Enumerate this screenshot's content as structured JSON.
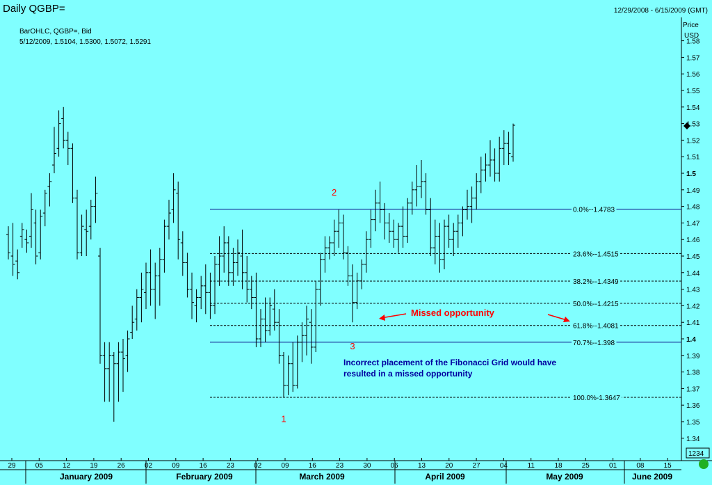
{
  "header": {
    "title": "Daily QGBP=",
    "date_range": "12/29/2008 - 6/15/2009 (GMT)",
    "series_info": "BarOHLC, QGBP=, Bid",
    "last_bar": "5/12/2009, 1.5104, 1.5300, 1.5072, 1.5291"
  },
  "axis": {
    "price_label": "Price",
    "currency_label": "USD",
    "corner_box": "1234"
  },
  "chart_data": {
    "type": "bar",
    "subtype": "ohlc",
    "ylim": [
      1.33,
      1.595
    ],
    "grid": false,
    "x_ticks": [
      "29",
      "05",
      "12",
      "19",
      "26",
      "02",
      "09",
      "16",
      "23",
      "02",
      "09",
      "16",
      "23",
      "30",
      "06",
      "13",
      "20",
      "27",
      "04",
      "11",
      "18",
      "25",
      "01",
      "08",
      "15"
    ],
    "month_labels": [
      "January 2009",
      "February 2009",
      "March 2009",
      "April 2009",
      "May 2009",
      "June 2009"
    ],
    "y_ticks": [
      1.34,
      1.35,
      1.36,
      1.37,
      1.38,
      1.39,
      1.4,
      1.41,
      1.42,
      1.43,
      1.44,
      1.45,
      1.46,
      1.47,
      1.48,
      1.49,
      1.5,
      1.51,
      1.52,
      1.53,
      1.54,
      1.55,
      1.56,
      1.57,
      1.58
    ],
    "last_price": 1.53,
    "ohlc": [
      [
        1.463,
        1.468,
        1.448,
        1.452
      ],
      [
        1.45,
        1.47,
        1.438,
        1.445
      ],
      [
        1.447,
        1.454,
        1.436,
        1.44
      ],
      [
        1.462,
        1.47,
        1.455,
        1.466
      ],
      [
        1.46,
        1.466,
        1.452,
        1.458
      ],
      [
        1.462,
        1.488,
        1.455,
        1.478
      ],
      [
        1.47,
        1.478,
        1.445,
        1.45
      ],
      [
        1.452,
        1.478,
        1.448,
        1.474
      ],
      [
        1.476,
        1.49,
        1.468,
        1.488
      ],
      [
        1.492,
        1.5,
        1.48,
        1.495
      ],
      [
        1.505,
        1.528,
        1.5,
        1.512
      ],
      [
        1.515,
        1.538,
        1.51,
        1.53
      ],
      [
        1.533,
        1.54,
        1.515,
        1.52
      ],
      [
        1.52,
        1.525,
        1.505,
        1.515
      ],
      [
        1.515,
        1.518,
        1.482,
        1.485
      ],
      [
        1.485,
        1.49,
        1.448,
        1.452
      ],
      [
        1.452,
        1.475,
        1.45,
        1.468
      ],
      [
        1.466,
        1.478,
        1.45,
        1.465
      ],
      [
        1.468,
        1.484,
        1.46,
        1.48
      ],
      [
        1.48,
        1.498,
        1.47,
        1.488
      ],
      [
        1.45,
        1.455,
        1.385,
        1.39
      ],
      [
        1.39,
        1.398,
        1.362,
        1.382
      ],
      [
        1.382,
        1.398,
        1.362,
        1.39
      ],
      [
        1.39,
        1.392,
        1.35,
        1.385
      ],
      [
        1.385,
        1.398,
        1.362,
        1.392
      ],
      [
        1.392,
        1.4,
        1.368,
        1.388
      ],
      [
        1.39,
        1.405,
        1.38,
        1.4
      ],
      [
        1.404,
        1.42,
        1.4,
        1.41
      ],
      [
        1.412,
        1.43,
        1.405,
        1.425
      ],
      [
        1.425,
        1.44,
        1.41,
        1.43
      ],
      [
        1.428,
        1.446,
        1.418,
        1.44
      ],
      [
        1.44,
        1.454,
        1.42,
        1.43
      ],
      [
        1.43,
        1.446,
        1.412,
        1.438
      ],
      [
        1.438,
        1.455,
        1.42,
        1.448
      ],
      [
        1.448,
        1.472,
        1.44,
        1.468
      ],
      [
        1.468,
        1.484,
        1.46,
        1.476
      ],
      [
        1.478,
        1.5,
        1.47,
        1.49
      ],
      [
        1.488,
        1.495,
        1.448,
        1.46
      ],
      [
        1.458,
        1.465,
        1.438,
        1.446
      ],
      [
        1.446,
        1.452,
        1.425,
        1.43
      ],
      [
        1.43,
        1.44,
        1.412,
        1.422
      ],
      [
        1.42,
        1.43,
        1.41,
        1.425
      ],
      [
        1.425,
        1.438,
        1.418,
        1.432
      ],
      [
        1.432,
        1.445,
        1.415,
        1.428
      ],
      [
        1.428,
        1.44,
        1.412,
        1.42
      ],
      [
        1.42,
        1.45,
        1.415,
        1.445
      ],
      [
        1.445,
        1.462,
        1.432,
        1.45
      ],
      [
        1.45,
        1.468,
        1.44,
        1.458
      ],
      [
        1.458,
        1.462,
        1.432,
        1.44
      ],
      [
        1.44,
        1.455,
        1.432,
        1.446
      ],
      [
        1.446,
        1.46,
        1.438,
        1.452
      ],
      [
        1.45,
        1.466,
        1.43,
        1.44
      ],
      [
        1.44,
        1.45,
        1.422,
        1.43
      ],
      [
        1.43,
        1.438,
        1.418,
        1.425
      ],
      [
        1.425,
        1.44,
        1.395,
        1.4
      ],
      [
        1.4,
        1.418,
        1.395,
        1.412
      ],
      [
        1.412,
        1.425,
        1.398,
        1.405
      ],
      [
        1.405,
        1.425,
        1.402,
        1.42
      ],
      [
        1.418,
        1.43,
        1.405,
        1.41
      ],
      [
        1.41,
        1.418,
        1.385,
        1.39
      ],
      [
        1.39,
        1.392,
        1.365,
        1.372
      ],
      [
        1.372,
        1.39,
        1.366,
        1.385
      ],
      [
        1.385,
        1.398,
        1.368,
        1.372
      ],
      [
        1.372,
        1.402,
        1.37,
        1.398
      ],
      [
        1.398,
        1.41,
        1.386,
        1.402
      ],
      [
        1.402,
        1.42,
        1.39,
        1.412
      ],
      [
        1.41,
        1.418,
        1.385,
        1.395
      ],
      [
        1.395,
        1.435,
        1.392,
        1.43
      ],
      [
        1.43,
        1.452,
        1.42,
        1.448
      ],
      [
        1.448,
        1.462,
        1.44,
        1.455
      ],
      [
        1.455,
        1.462,
        1.448,
        1.458
      ],
      [
        1.458,
        1.472,
        1.45,
        1.465
      ],
      [
        1.465,
        1.478,
        1.455,
        1.47
      ],
      [
        1.47,
        1.475,
        1.448,
        1.452
      ],
      [
        1.452,
        1.456,
        1.432,
        1.438
      ],
      [
        1.438,
        1.445,
        1.41,
        1.422
      ],
      [
        1.422,
        1.44,
        1.418,
        1.435
      ],
      [
        1.435,
        1.448,
        1.43,
        1.445
      ],
      [
        1.445,
        1.465,
        1.44,
        1.46
      ],
      [
        1.46,
        1.478,
        1.455,
        1.472
      ],
      [
        1.472,
        1.49,
        1.465,
        1.482
      ],
      [
        1.482,
        1.495,
        1.47,
        1.478
      ],
      [
        1.478,
        1.482,
        1.46,
        1.47
      ],
      [
        1.47,
        1.476,
        1.458,
        1.465
      ],
      [
        1.465,
        1.472,
        1.455,
        1.46
      ],
      [
        1.46,
        1.47,
        1.452,
        1.468
      ],
      [
        1.468,
        1.48,
        1.455,
        1.462
      ],
      [
        1.462,
        1.485,
        1.458,
        1.482
      ],
      [
        1.482,
        1.495,
        1.475,
        1.49
      ],
      [
        1.49,
        1.505,
        1.48,
        1.492
      ],
      [
        1.492,
        1.508,
        1.485,
        1.495
      ],
      [
        1.495,
        1.5,
        1.475,
        1.478
      ],
      [
        1.478,
        1.485,
        1.45,
        1.455
      ],
      [
        1.455,
        1.472,
        1.445,
        1.462
      ],
      [
        1.462,
        1.47,
        1.44,
        1.448
      ],
      [
        1.448,
        1.472,
        1.442,
        1.468
      ],
      [
        1.468,
        1.475,
        1.455,
        1.46
      ],
      [
        1.46,
        1.47,
        1.45,
        1.465
      ],
      [
        1.465,
        1.475,
        1.455,
        1.47
      ],
      [
        1.47,
        1.48,
        1.462,
        1.478
      ],
      [
        1.478,
        1.49,
        1.472,
        1.48
      ],
      [
        1.48,
        1.492,
        1.47,
        1.485
      ],
      [
        1.485,
        1.5,
        1.478,
        1.495
      ],
      [
        1.495,
        1.51,
        1.488,
        1.502
      ],
      [
        1.502,
        1.512,
        1.495,
        1.505
      ],
      [
        1.505,
        1.52,
        1.498,
        1.508
      ],
      [
        1.508,
        1.515,
        1.495,
        1.5
      ],
      [
        1.5,
        1.522,
        1.495,
        1.515
      ],
      [
        1.515,
        1.526,
        1.505,
        1.518
      ],
      [
        1.518,
        1.525,
        1.505,
        1.512
      ],
      [
        1.51,
        1.53,
        1.507,
        1.529
      ]
    ],
    "fib_levels": [
      {
        "label": "0.0%--1.4783",
        "value": 1.4783,
        "style": "solid"
      },
      {
        "label": "23.6%--1.4515",
        "value": 1.4515,
        "style": "dashed"
      },
      {
        "label": "38.2%--1.4349",
        "value": 1.4349,
        "style": "dashed"
      },
      {
        "label": "50.0%--1.4215",
        "value": 1.4215,
        "style": "dashed"
      },
      {
        "label": "61.8%--1.4081",
        "value": 1.4081,
        "style": "dashed"
      },
      {
        "label": "70.7%--1.398",
        "value": 1.398,
        "style": "solid"
      },
      {
        "label": "100.0%-1.3647",
        "value": 1.3647,
        "style": "dashed"
      }
    ],
    "points": [
      {
        "label": "1",
        "at": 60,
        "value": 1.359
      },
      {
        "label": "2",
        "at": 71,
        "value": 1.484
      },
      {
        "label": "3",
        "at": 75,
        "value": 1.403
      }
    ]
  },
  "annotations": {
    "missed": "Missed opportunity",
    "note_line1": "Incorrect placement of the Fibonacci Grid would have",
    "note_line2": "resulted in a missed opportunity"
  },
  "colors": {
    "background": "#80ffff",
    "annotation_red": "#ff0000",
    "note_blue": "#0000a0",
    "fib_line": "#000080"
  }
}
